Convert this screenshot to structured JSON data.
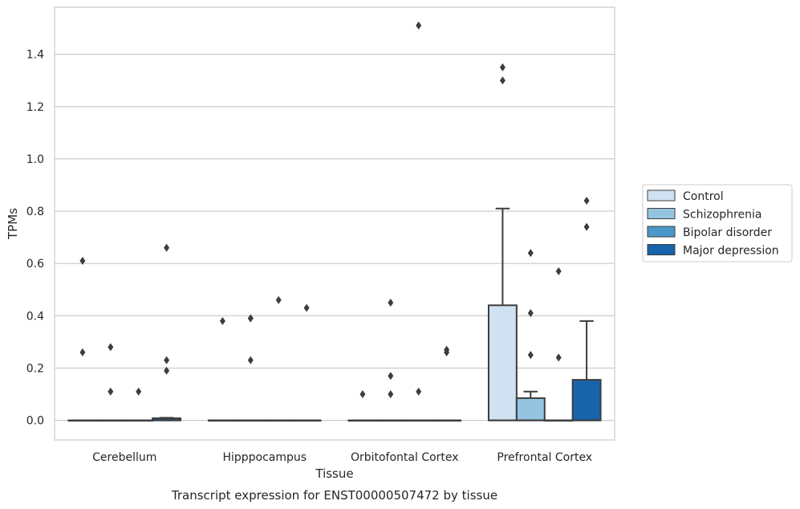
{
  "chart_data": {
    "type": "box",
    "caption": "Transcript expression for ENST00000507472 by tissue",
    "xlabel": "Tissue",
    "ylabel": "TPMs",
    "ylim": [
      -0.075,
      1.58
    ],
    "yticks": [
      0.0,
      0.2,
      0.4,
      0.6,
      0.8,
      1.0,
      1.2,
      1.4
    ],
    "ytick_labels": [
      "0.0",
      "0.2",
      "0.4",
      "0.6",
      "0.8",
      "1.0",
      "1.2",
      "1.4"
    ],
    "grid": "horizontal",
    "legend_position": "right",
    "categories": [
      "Cerebellum",
      "Hipppocampus",
      "Orbitofontal Cortex",
      "Prefrontal Cortex"
    ],
    "series": [
      {
        "name": "Control",
        "color": "#d0e1f2",
        "boxes": [
          {
            "q1": 0.0,
            "median": 0.0,
            "q3": 0.0,
            "whislo": 0.0,
            "whishi": 0.0,
            "fliers": [
              0.61,
              0.26
            ]
          },
          {
            "q1": 0.0,
            "median": 0.0,
            "q3": 0.0,
            "whislo": 0.0,
            "whishi": 0.0,
            "fliers": [
              0.38
            ]
          },
          {
            "q1": 0.0,
            "median": 0.0,
            "q3": 0.0,
            "whislo": 0.0,
            "whishi": 0.0,
            "fliers": [
              0.1
            ]
          },
          {
            "q1": 0.0,
            "median": 0.0,
            "q3": 0.44,
            "whislo": 0.0,
            "whishi": 0.81,
            "fliers": [
              1.35,
              1.3
            ]
          }
        ]
      },
      {
        "name": "Schizophrenia",
        "color": "#94c4df",
        "boxes": [
          {
            "q1": 0.0,
            "median": 0.0,
            "q3": 0.0,
            "whislo": 0.0,
            "whishi": 0.0,
            "fliers": [
              0.28,
              0.11
            ]
          },
          {
            "q1": 0.0,
            "median": 0.0,
            "q3": 0.0,
            "whislo": 0.0,
            "whishi": 0.0,
            "fliers": [
              0.39,
              0.39,
              0.23
            ]
          },
          {
            "q1": 0.0,
            "median": 0.0,
            "q3": 0.0,
            "whislo": 0.0,
            "whishi": 0.0,
            "fliers": [
              0.45,
              0.17,
              0.1
            ]
          },
          {
            "q1": 0.0,
            "median": 0.0,
            "q3": 0.085,
            "whislo": 0.0,
            "whishi": 0.11,
            "fliers": [
              0.64,
              0.41,
              0.25
            ]
          }
        ]
      },
      {
        "name": "Bipolar disorder",
        "color": "#4a98c9",
        "boxes": [
          {
            "q1": 0.0,
            "median": 0.0,
            "q3": 0.0,
            "whislo": 0.0,
            "whishi": 0.0,
            "fliers": [
              0.11
            ]
          },
          {
            "q1": 0.0,
            "median": 0.0,
            "q3": 0.0,
            "whislo": 0.0,
            "whishi": 0.0,
            "fliers": [
              0.46
            ]
          },
          {
            "q1": 0.0,
            "median": 0.0,
            "q3": 0.0,
            "whislo": 0.0,
            "whishi": 0.0,
            "fliers": [
              1.51,
              0.11
            ]
          },
          {
            "q1": 0.0,
            "median": 0.0,
            "q3": 0.0,
            "whislo": 0.0,
            "whishi": 0.0,
            "fliers": [
              0.57,
              0.24
            ]
          }
        ]
      },
      {
        "name": "Major depression",
        "color": "#1764ab",
        "boxes": [
          {
            "q1": 0.0,
            "median": 0.0,
            "q3": 0.008,
            "whislo": 0.0,
            "whishi": 0.01,
            "fliers": [
              0.66,
              0.23,
              0.19
            ]
          },
          {
            "q1": 0.0,
            "median": 0.0,
            "q3": 0.0,
            "whislo": 0.0,
            "whishi": 0.0,
            "fliers": [
              0.43
            ]
          },
          {
            "q1": 0.0,
            "median": 0.0,
            "q3": 0.0,
            "whislo": 0.0,
            "whishi": 0.0,
            "fliers": [
              0.27,
              0.26
            ]
          },
          {
            "q1": 0.0,
            "median": 0.0,
            "q3": 0.155,
            "whislo": 0.0,
            "whishi": 0.38,
            "fliers": [
              0.84,
              0.74
            ]
          }
        ]
      }
    ]
  }
}
